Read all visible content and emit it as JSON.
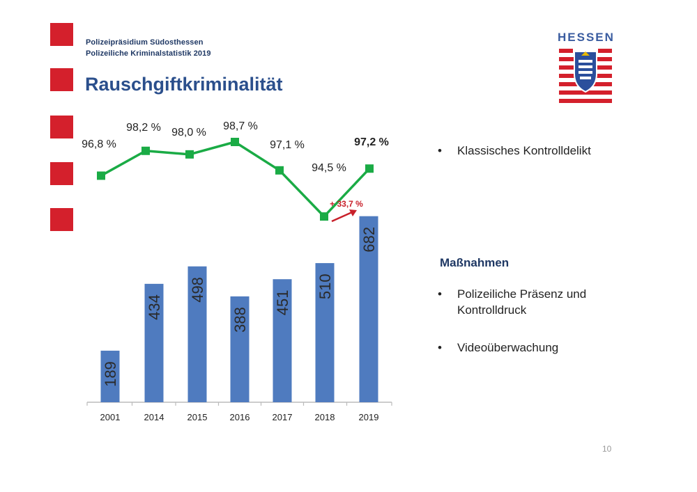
{
  "header": {
    "line1": "Polizeipräsidium Südosthessen",
    "line2": "Polizeiliche Kriminalstatistik 2019",
    "title": "Rauschgiftkriminalität"
  },
  "logo": {
    "text": "HESSEN",
    "icon": "hessen-coat-of-arms-icon"
  },
  "colors": {
    "accent_red": "#d4202c",
    "bar_blue": "#4f7bbf",
    "line_green": "#1aab45",
    "title_blue": "#2b4f8c",
    "arrow_red": "#c8202a"
  },
  "chart_data": {
    "type": "bar",
    "categories": [
      "2001",
      "2014",
      "2015",
      "2016",
      "2017",
      "2018",
      "2019"
    ],
    "values": [
      189,
      434,
      498,
      388,
      451,
      510,
      682
    ],
    "line_series": {
      "type": "line",
      "values": [
        96.8,
        98.2,
        98.0,
        98.7,
        97.1,
        94.5,
        97.2
      ],
      "labels": [
        "96,8 %",
        "98,2 %",
        "98,0 %",
        "98,7 %",
        "97,1 %",
        "94,5 %",
        "97,2 %"
      ]
    },
    "annotation": "+ 33,7 %",
    "grid": false
  },
  "bullets": {
    "item1": "Klassisches Kontrolldelikt",
    "measures_heading": "Maßnahmen",
    "item2_line1": "Polizeiliche Präsenz und",
    "item2_line2": "Kontrolldruck",
    "item3": "Videoüberwachung",
    "bullet_char": "•"
  },
  "page_number": "10"
}
